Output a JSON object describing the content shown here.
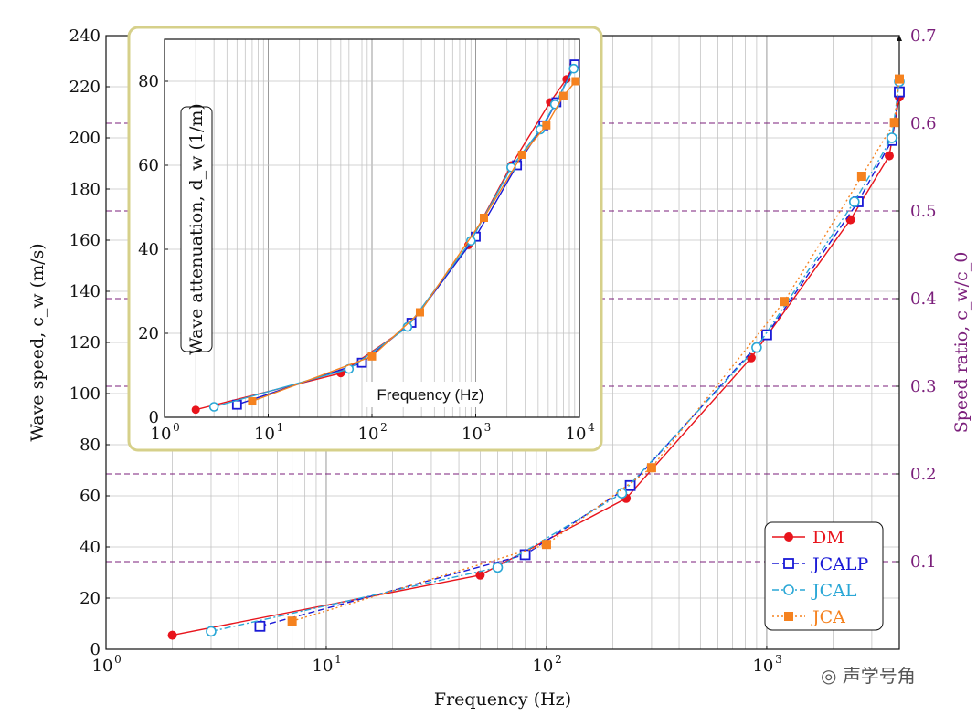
{
  "chart_data": [
    {
      "type": "line",
      "xscale": "log",
      "xlim": [
        1,
        4000
      ],
      "ylim": [
        0,
        240
      ],
      "y2lim": [
        0,
        0.7
      ],
      "xlabel": "Frequency (Hz)",
      "ylabel": "Wave speed, c_w (m/s)",
      "y2label": "Speed ratio, c_w/c_0",
      "x_ticks": [
        1,
        10,
        100,
        1000
      ],
      "x_tick_labels": [
        "10",
        "10",
        "10",
        "10"
      ],
      "x_tick_exps": [
        "0",
        "1",
        "2",
        "3"
      ],
      "y_ticks": [
        0,
        20,
        40,
        60,
        80,
        100,
        120,
        140,
        160,
        180,
        200,
        220,
        240
      ],
      "y2_ticks": [
        0.1,
        0.2,
        0.3,
        0.4,
        0.5,
        0.6,
        0.7
      ],
      "grid": true,
      "legend": "bottom-right",
      "series": [
        {
          "name": "DM",
          "color": "#e8141c",
          "marker": "filled-circle",
          "dash": "solid",
          "x": [
            2,
            50,
            230,
            850,
            2400,
            3600,
            4000
          ],
          "y": [
            5.5,
            29,
            59,
            114,
            168,
            193,
            216
          ]
        },
        {
          "name": "JCALP",
          "color": "#1a1ad6",
          "marker": "open-square",
          "dash": "dashed",
          "x": [
            5,
            80,
            240,
            1000,
            2600,
            3700,
            4000
          ],
          "y": [
            9,
            37,
            64,
            123,
            175,
            199,
            218
          ]
        },
        {
          "name": "JCAL",
          "color": "#2aa7d6",
          "marker": "open-circle",
          "dash": "dash-dot",
          "x": [
            3,
            60,
            220,
            900,
            2500,
            3700,
            4000
          ],
          "y": [
            7,
            32,
            61,
            118,
            175,
            200,
            222
          ]
        },
        {
          "name": "JCA",
          "color": "#f5821f",
          "marker": "filled-square",
          "dash": "dotted",
          "x": [
            7,
            100,
            300,
            1200,
            2700,
            3800,
            4000
          ],
          "y": [
            11,
            41,
            71,
            136,
            185,
            206,
            223
          ]
        }
      ]
    },
    {
      "type": "line",
      "inset": true,
      "xscale": "log",
      "xlim": [
        1,
        10000
      ],
      "ylim": [
        0,
        90
      ],
      "xlabel": "Frequency (Hz)",
      "ylabel": "Wave attenuation, d_w (1/m)",
      "x_ticks": [
        1,
        10,
        100,
        1000,
        10000
      ],
      "x_tick_labels": [
        "10",
        "10",
        "10",
        "10",
        "10"
      ],
      "x_tick_exps": [
        "0",
        "1",
        "2",
        "3",
        "4"
      ],
      "y_ticks": [
        0,
        20,
        40,
        60,
        80
      ],
      "grid": true,
      "series": [
        {
          "name": "DM",
          "color": "#e8141c",
          "marker": "filled-circle",
          "x": [
            2,
            50,
            220,
            850,
            2200,
            5200,
            7500,
            8800
          ],
          "y": [
            1.8,
            10.5,
            21.5,
            41,
            60,
            75,
            80.5,
            84
          ]
        },
        {
          "name": "JCALP",
          "color": "#1a1ad6",
          "marker": "open-square",
          "x": [
            5,
            80,
            240,
            1000,
            2500,
            4500,
            6000,
            9000
          ],
          "y": [
            3,
            13,
            22.5,
            43,
            60,
            69.5,
            75,
            84
          ]
        },
        {
          "name": "JCAL",
          "color": "#2aa7d6",
          "marker": "open-circle",
          "x": [
            3,
            60,
            220,
            900,
            2200,
            4200,
            5800,
            8800
          ],
          "y": [
            2.5,
            11.5,
            21.5,
            42,
            59.5,
            68.5,
            74.5,
            83
          ]
        },
        {
          "name": "JCA",
          "color": "#f5821f",
          "marker": "filled-square",
          "x": [
            7,
            100,
            290,
            1200,
            2800,
            4800,
            7000,
            9200
          ],
          "y": [
            3.8,
            14.5,
            25,
            47.5,
            62.5,
            69.5,
            76.5,
            80
          ]
        }
      ]
    }
  ],
  "watermark": "声学号角"
}
